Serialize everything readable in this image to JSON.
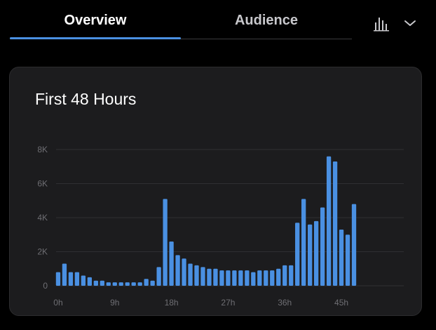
{
  "tabs": [
    {
      "label": "Overview",
      "active": true
    },
    {
      "label": "Audience",
      "active": false
    }
  ],
  "icons": {
    "chart_type": "bar-chart-icon",
    "dropdown": "chevron-down-icon"
  },
  "colors": {
    "accent": "#4a90e2",
    "bar": "#4a90e2",
    "card_background": "#1c1c1e",
    "gridline": "#2f2f33"
  },
  "card": {
    "title": "First 48 Hours"
  },
  "chart_data": {
    "type": "bar",
    "title": "First 48 Hours",
    "xlabel": "",
    "ylabel": "",
    "x": [
      0,
      1,
      2,
      3,
      4,
      5,
      6,
      7,
      8,
      9,
      10,
      11,
      12,
      13,
      14,
      15,
      16,
      17,
      18,
      19,
      20,
      21,
      22,
      23,
      24,
      25,
      26,
      27,
      28,
      29,
      30,
      31,
      32,
      33,
      34,
      35,
      36,
      37,
      38,
      39,
      40,
      41,
      42,
      43,
      44,
      45,
      46,
      47
    ],
    "values": [
      800,
      1300,
      800,
      800,
      600,
      500,
      300,
      300,
      200,
      200,
      200,
      200,
      200,
      200,
      400,
      300,
      1100,
      5100,
      2600,
      1800,
      1600,
      1300,
      1200,
      1100,
      1000,
      1000,
      900,
      900,
      900,
      900,
      900,
      800,
      900,
      900,
      900,
      1000,
      1200,
      1200,
      3700,
      5100,
      3600,
      3800,
      4600,
      7600,
      7300,
      3300,
      3000,
      4800
    ],
    "x_ticks": [
      {
        "value": 0,
        "label": "0h"
      },
      {
        "value": 9,
        "label": "9h"
      },
      {
        "value": 18,
        "label": "18h"
      },
      {
        "value": 27,
        "label": "27h"
      },
      {
        "value": 36,
        "label": "36h"
      },
      {
        "value": 45,
        "label": "45h"
      }
    ],
    "y_ticks": [
      {
        "value": 0,
        "label": "0"
      },
      {
        "value": 2000,
        "label": "2K"
      },
      {
        "value": 4000,
        "label": "4K"
      },
      {
        "value": 6000,
        "label": "6K"
      },
      {
        "value": 8000,
        "label": "8K"
      }
    ],
    "ylim": [
      0,
      8000
    ],
    "grid": true,
    "legend": "none"
  }
}
